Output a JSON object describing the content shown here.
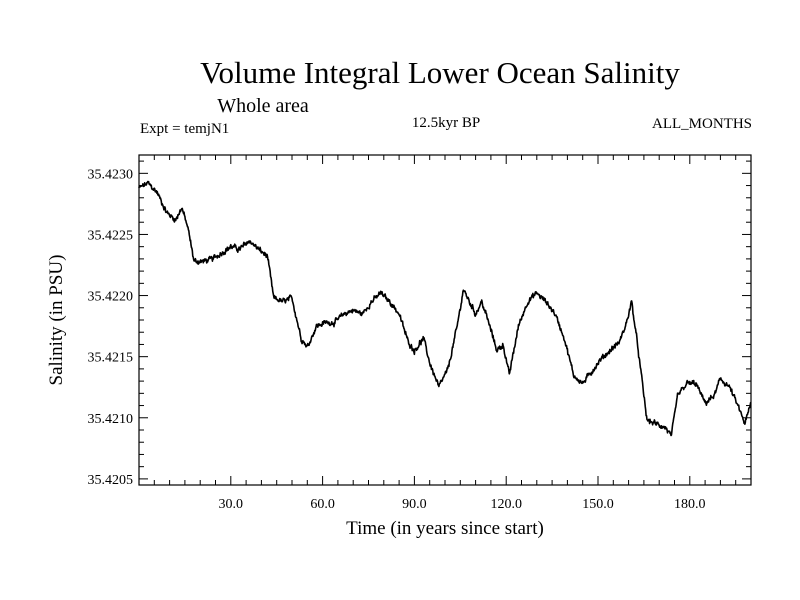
{
  "chart_data": {
    "type": "line",
    "title": "Volume Integral Lower Ocean Salinity",
    "subtitle": "Whole area",
    "header_left": "Expt = temjN1",
    "header_center": "12.5kyr BP",
    "header_right": "ALL_MONTHS",
    "xlabel": "Time (in years since start)",
    "ylabel": "Salinity (in PSU)",
    "xlim": [
      0,
      200
    ],
    "ylim": [
      35.42045,
      35.42315
    ],
    "x_ticks": [
      30,
      60,
      90,
      120,
      150,
      180
    ],
    "x_tick_labels": [
      "30.0",
      "60.0",
      "90.0",
      "120.0",
      "150.0",
      "180.0"
    ],
    "y_ticks": [
      35.4205,
      35.421,
      35.4215,
      35.422,
      35.4225,
      35.423
    ],
    "y_tick_labels": [
      "35.4205",
      "35.4210",
      "35.4215",
      "35.4220",
      "35.4225",
      "35.4230"
    ],
    "grid": false,
    "series": [
      {
        "name": "salinity",
        "x": [
          0,
          3,
          6,
          9,
          12,
          14,
          16,
          18,
          21,
          24,
          27,
          30,
          33,
          36,
          39,
          42,
          44,
          47,
          50,
          53,
          55,
          58,
          61,
          64,
          67,
          70,
          73,
          76,
          79,
          82,
          85,
          88,
          90,
          93,
          95,
          98,
          101,
          104,
          106,
          108,
          110,
          112,
          114,
          117,
          119,
          121,
          124,
          127,
          130,
          133,
          136,
          139,
          142,
          145,
          148,
          151,
          154,
          157,
          159,
          161,
          163,
          166,
          169,
          172,
          174,
          176,
          179,
          182,
          185,
          188,
          190,
          193,
          196,
          198,
          200
        ],
        "y": [
          35.42288,
          35.42292,
          35.42284,
          35.42268,
          35.42262,
          35.42272,
          35.42255,
          35.42228,
          35.42228,
          35.4223,
          35.42235,
          35.4224,
          35.42238,
          35.42245,
          35.42238,
          35.42232,
          35.42198,
          35.42195,
          35.42198,
          35.42165,
          35.42158,
          35.42175,
          35.42178,
          35.42178,
          35.42185,
          35.42188,
          35.42185,
          35.42195,
          35.42202,
          35.42195,
          35.42185,
          35.42162,
          35.42155,
          35.42165,
          35.42145,
          35.42125,
          35.4214,
          35.42175,
          35.42205,
          35.42195,
          35.42185,
          35.42195,
          35.4218,
          35.42155,
          35.4216,
          35.42135,
          35.42175,
          35.42195,
          35.42202,
          35.42195,
          35.42185,
          35.42165,
          35.42135,
          35.42128,
          35.42138,
          35.42148,
          35.42155,
          35.42162,
          35.42175,
          35.42195,
          35.42158,
          35.42098,
          35.42095,
          35.42092,
          35.42085,
          35.42118,
          35.42128,
          35.42128,
          35.42112,
          35.42118,
          35.42132,
          35.42125,
          35.42108,
          35.42095,
          35.42112
        ]
      }
    ]
  }
}
